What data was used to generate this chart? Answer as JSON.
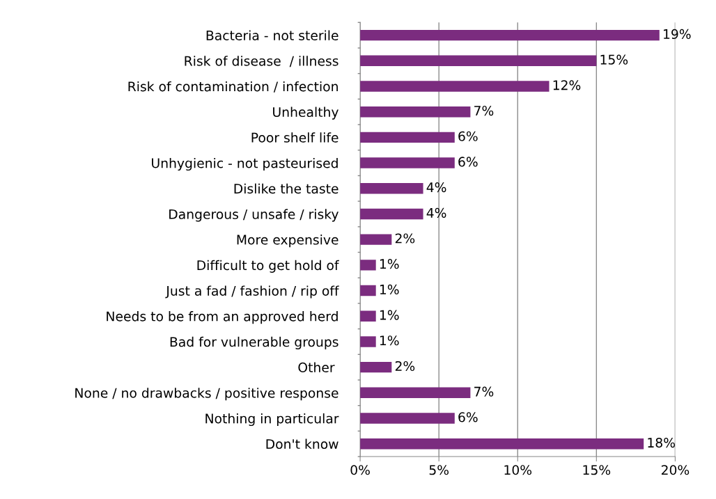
{
  "chart_data": {
    "type": "bar",
    "orientation": "horizontal",
    "categories": [
      "Bacteria - not sterile",
      "Risk of disease  / illness",
      "Risk of contamination / infection",
      "Unhealthy",
      "Poor shelf life",
      "Unhygienic - not pasteurised",
      "Dislike the taste",
      "Dangerous / unsafe / risky",
      "More expensive",
      "Difficult to get hold of",
      "Just a fad / fashion / rip off",
      "Needs to be from an approved herd",
      "Bad for vulnerable groups",
      "Other ",
      "None / no drawbacks / positive response",
      "Nothing in particular",
      "Don't know"
    ],
    "values": [
      19,
      15,
      12,
      7,
      6,
      6,
      4,
      4,
      2,
      1,
      1,
      1,
      1,
      2,
      7,
      6,
      18
    ],
    "value_labels": [
      "19%",
      "15%",
      "12%",
      "7%",
      "6%",
      "6%",
      "4%",
      "4%",
      "2%",
      "1%",
      "1%",
      "1%",
      "1%",
      "2%",
      "7%",
      "6%",
      "18%"
    ],
    "color": "#7b2c7f",
    "xlim": [
      0,
      20
    ],
    "xticks": [
      {
        "value": 0,
        "label": "0%"
      },
      {
        "value": 5,
        "label": "5%"
      },
      {
        "value": 10,
        "label": "10%"
      },
      {
        "value": 15,
        "label": "15%"
      },
      {
        "value": 20,
        "label": "20%"
      }
    ],
    "grid": "x"
  }
}
